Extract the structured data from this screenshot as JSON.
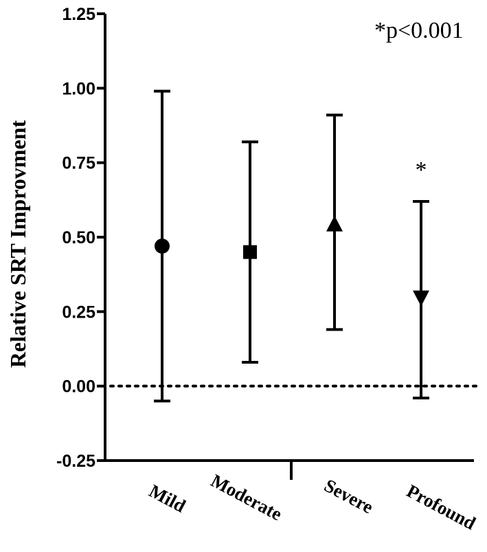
{
  "chart_data": {
    "type": "scatter",
    "title": "",
    "xlabel": "",
    "ylabel": "Relative SRT Improvment",
    "ylim": [
      -0.25,
      1.25
    ],
    "yticks": [
      "1.25",
      "1.00",
      "0.75",
      "0.50",
      "0.25",
      "0.00",
      "-0.25"
    ],
    "categories": [
      "Mild",
      "Moderate",
      "Severe",
      "Profound"
    ],
    "points": [
      {
        "category": "Mild",
        "mean": 0.47,
        "lower": -0.05,
        "upper": 0.99,
        "marker": "circle"
      },
      {
        "category": "Moderate",
        "mean": 0.45,
        "lower": 0.08,
        "upper": 0.82,
        "marker": "square"
      },
      {
        "category": "Severe",
        "mean": 0.54,
        "lower": 0.19,
        "upper": 0.91,
        "marker": "triangle-up"
      },
      {
        "category": "Profound",
        "mean": 0.3,
        "lower": -0.04,
        "upper": 0.62,
        "marker": "triangle-down",
        "significance": "*"
      }
    ],
    "reference_line": {
      "y": 0.0,
      "style": "dotted"
    },
    "annotation": "*p<0.001",
    "grid": false,
    "legend": "none"
  }
}
